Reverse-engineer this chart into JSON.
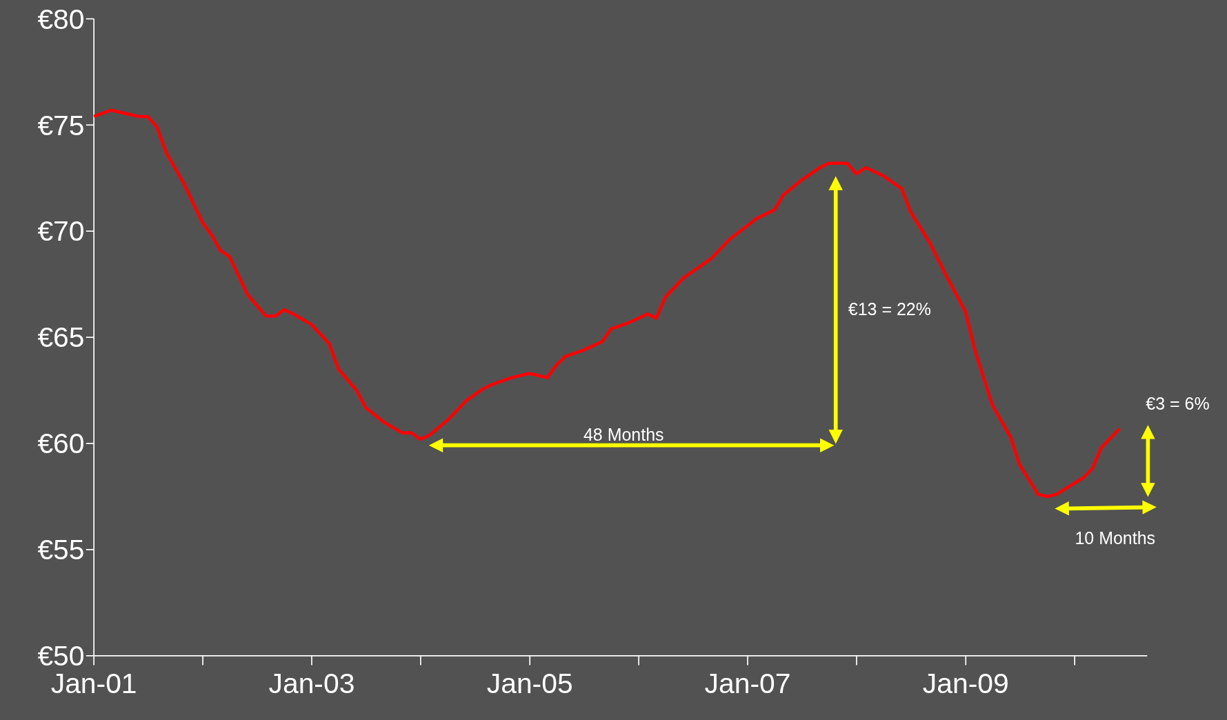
{
  "chart_data": {
    "type": "line",
    "x": [
      "2001-01",
      "2001-03",
      "2001-06",
      "2001-07",
      "2001-08",
      "2001-09",
      "2001-11",
      "2001-12",
      "2002-01",
      "2002-02",
      "2002-03",
      "2002-04",
      "2002-06",
      "2002-08",
      "2002-09",
      "2002-10",
      "2002-11",
      "2003-01",
      "2003-03",
      "2003-04",
      "2003-06",
      "2003-07",
      "2003-09",
      "2003-11",
      "2003-12",
      "2004-01",
      "2004-02",
      "2004-04",
      "2004-06",
      "2004-08",
      "2004-09",
      "2004-11",
      "2005-01",
      "2005-03",
      "2005-04",
      "2005-05",
      "2005-07",
      "2005-09",
      "2005-10",
      "2005-12",
      "2006-02",
      "2006-03",
      "2006-04",
      "2006-06",
      "2006-09",
      "2006-11",
      "2007-02",
      "2007-04",
      "2007-05",
      "2007-07",
      "2007-09",
      "2007-10",
      "2007-12",
      "2008-01",
      "2008-02",
      "2008-04",
      "2008-06",
      "2008-07",
      "2008-09",
      "2008-11",
      "2009-01",
      "2009-02",
      "2009-04",
      "2009-06",
      "2009-07",
      "2009-09",
      "2009-10",
      "2009-11",
      "2010-02",
      "2010-03",
      "2010-04",
      "2010-06"
    ],
    "series": [
      {
        "color": "#ff0000",
        "values": [
          75.4,
          75.7,
          75.4,
          75.4,
          74.9,
          73.7,
          72.2,
          71.3,
          70.4,
          69.8,
          69.1,
          68.8,
          67.0,
          66.0,
          66.0,
          66.3,
          66.1,
          65.6,
          64.7,
          63.5,
          62.5,
          61.7,
          61.0,
          60.5,
          60.5,
          60.2,
          60.4,
          61.1,
          62.0,
          62.6,
          62.8,
          63.1,
          63.3,
          63.1,
          63.7,
          64.1,
          64.4,
          64.8,
          65.4,
          65.7,
          66.1,
          65.9,
          66.9,
          67.8,
          68.7,
          69.6,
          70.6,
          71.0,
          71.7,
          72.4,
          73.0,
          73.2,
          73.2,
          72.7,
          73.0,
          72.6,
          72.0,
          70.9,
          69.5,
          67.8,
          66.2,
          64.4,
          61.8,
          60.3,
          59.0,
          57.6,
          57.5,
          57.6,
          58.4,
          58.8,
          59.8,
          60.7
        ]
      }
    ],
    "xlim": [
      "2001-01",
      "2010-09"
    ],
    "xticks": [
      {
        "value": "2001-01",
        "label": "Jan-01"
      },
      {
        "value": "2002-01",
        "label": null
      },
      {
        "value": "2003-01",
        "label": "Jan-03"
      },
      {
        "value": "2004-01",
        "label": null
      },
      {
        "value": "2005-01",
        "label": "Jan-05"
      },
      {
        "value": "2006-01",
        "label": null
      },
      {
        "value": "2007-01",
        "label": "Jan-07"
      },
      {
        "value": "2008-01",
        "label": null
      },
      {
        "value": "2009-01",
        "label": "Jan-09"
      },
      {
        "value": "2010-01",
        "label": null
      }
    ],
    "ylim": [
      50,
      80
    ],
    "yticks": [
      {
        "value": 50,
        "label": "€50"
      },
      {
        "value": 55,
        "label": "€55"
      },
      {
        "value": 60,
        "label": "€60"
      },
      {
        "value": 65,
        "label": "€65"
      },
      {
        "value": 70,
        "label": "€70"
      },
      {
        "value": 75,
        "label": "€75"
      },
      {
        "value": 80,
        "label": "€80"
      }
    ],
    "grid": false,
    "marker": "none",
    "line_style": "solid",
    "annotations": [
      "48 Months",
      "€13 = 22%",
      "€3 = 6%",
      "10 Months"
    ]
  }
}
